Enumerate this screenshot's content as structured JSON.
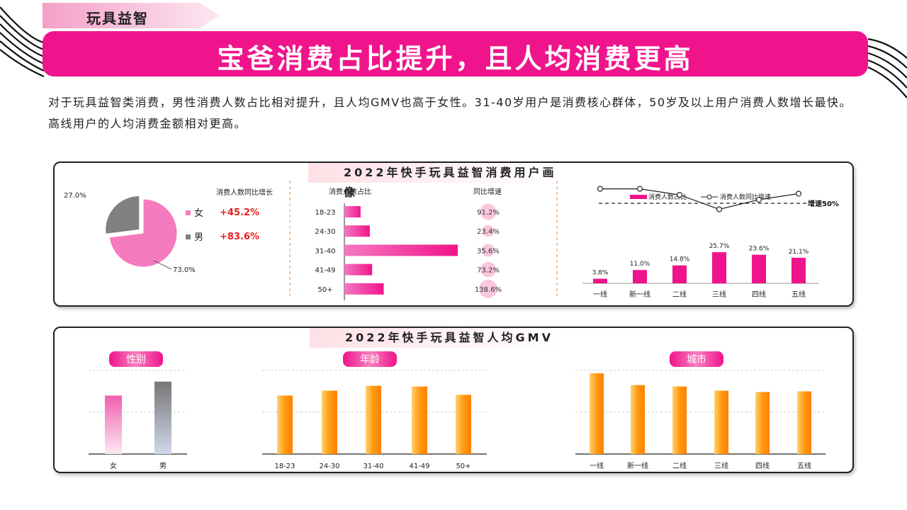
{
  "header": {
    "tag": "玩具益智",
    "title": "宝爸消费占比提升，且人均消费更高"
  },
  "intro": "对于玩具益智类消费，男性消费人数占比相对提升，且人均GMV也高于女性。31-40岁用户是消费核心群体，50岁及以上用户消费人数增长最快。高线用户的人均消费金额相对更高。",
  "card1": {
    "title": "2022年快手玩具益智消费用户画像"
  },
  "card2": {
    "title": "2022年快手玩具益智人均GMV"
  },
  "colors": {
    "pink": "#f0148c",
    "pie_female": "#f47bbd",
    "pie_male": "#808080",
    "orange": "#ff9000",
    "red": "#e8201e"
  },
  "chart_data": [
    {
      "id": "gender_share",
      "type": "pie",
      "labels": [
        "女",
        "男"
      ],
      "values": [
        73.0,
        27.0
      ],
      "value_labels": [
        "73.0%",
        "27.0%"
      ],
      "growth_header": "消费人数同比增长",
      "growth": [
        "+45.2%",
        "+83.6%"
      ]
    },
    {
      "id": "age_share",
      "type": "bar",
      "orientation": "horizontal",
      "header": "消费人数占比",
      "growth_header": "同比增速",
      "categories": [
        "18-23",
        "24-30",
        "31-40",
        "41-49",
        "50+"
      ],
      "values": [
        7,
        11,
        49,
        12,
        17
      ],
      "growth": [
        91.2,
        23.4,
        35.6,
        73.2,
        138.6
      ],
      "growth_labels": [
        "91.2%",
        "23.4%",
        "35.6%",
        "73.2%",
        "138.6%"
      ]
    },
    {
      "id": "city_share",
      "type": "bar",
      "legend": [
        "消费人数占比",
        "消费人数同比增速"
      ],
      "categories": [
        "一线",
        "新一线",
        "二线",
        "三线",
        "四线",
        "五线"
      ],
      "values": [
        3.8,
        11.0,
        14.8,
        25.7,
        23.6,
        21.1
      ],
      "value_labels": [
        "3.8%",
        "11.0%",
        "14.8%",
        "25.7%",
        "23.6%",
        "21.1%"
      ],
      "line_values": [
        62,
        62,
        57,
        45,
        53,
        58
      ],
      "reference_value": 50,
      "reference_label": "增速50%"
    },
    {
      "id": "gender_gmv",
      "type": "bar",
      "label": "性别",
      "categories": [
        "女",
        "男"
      ],
      "values": [
        84,
        104
      ],
      "ylim": [
        0,
        120
      ]
    },
    {
      "id": "age_gmv",
      "type": "bar",
      "label": "年龄",
      "categories": [
        "18-23",
        "24-30",
        "31-40",
        "41-49",
        "50+"
      ],
      "values": [
        84,
        91,
        98,
        97,
        85
      ],
      "ylim": [
        0,
        120
      ]
    },
    {
      "id": "city_gmv",
      "type": "bar",
      "label": "城市",
      "categories": [
        "一线",
        "新一线",
        "二线",
        "三线",
        "四线",
        "五线"
      ],
      "values": [
        116,
        99,
        97,
        91,
        89,
        90
      ],
      "ylim": [
        0,
        120
      ]
    }
  ]
}
